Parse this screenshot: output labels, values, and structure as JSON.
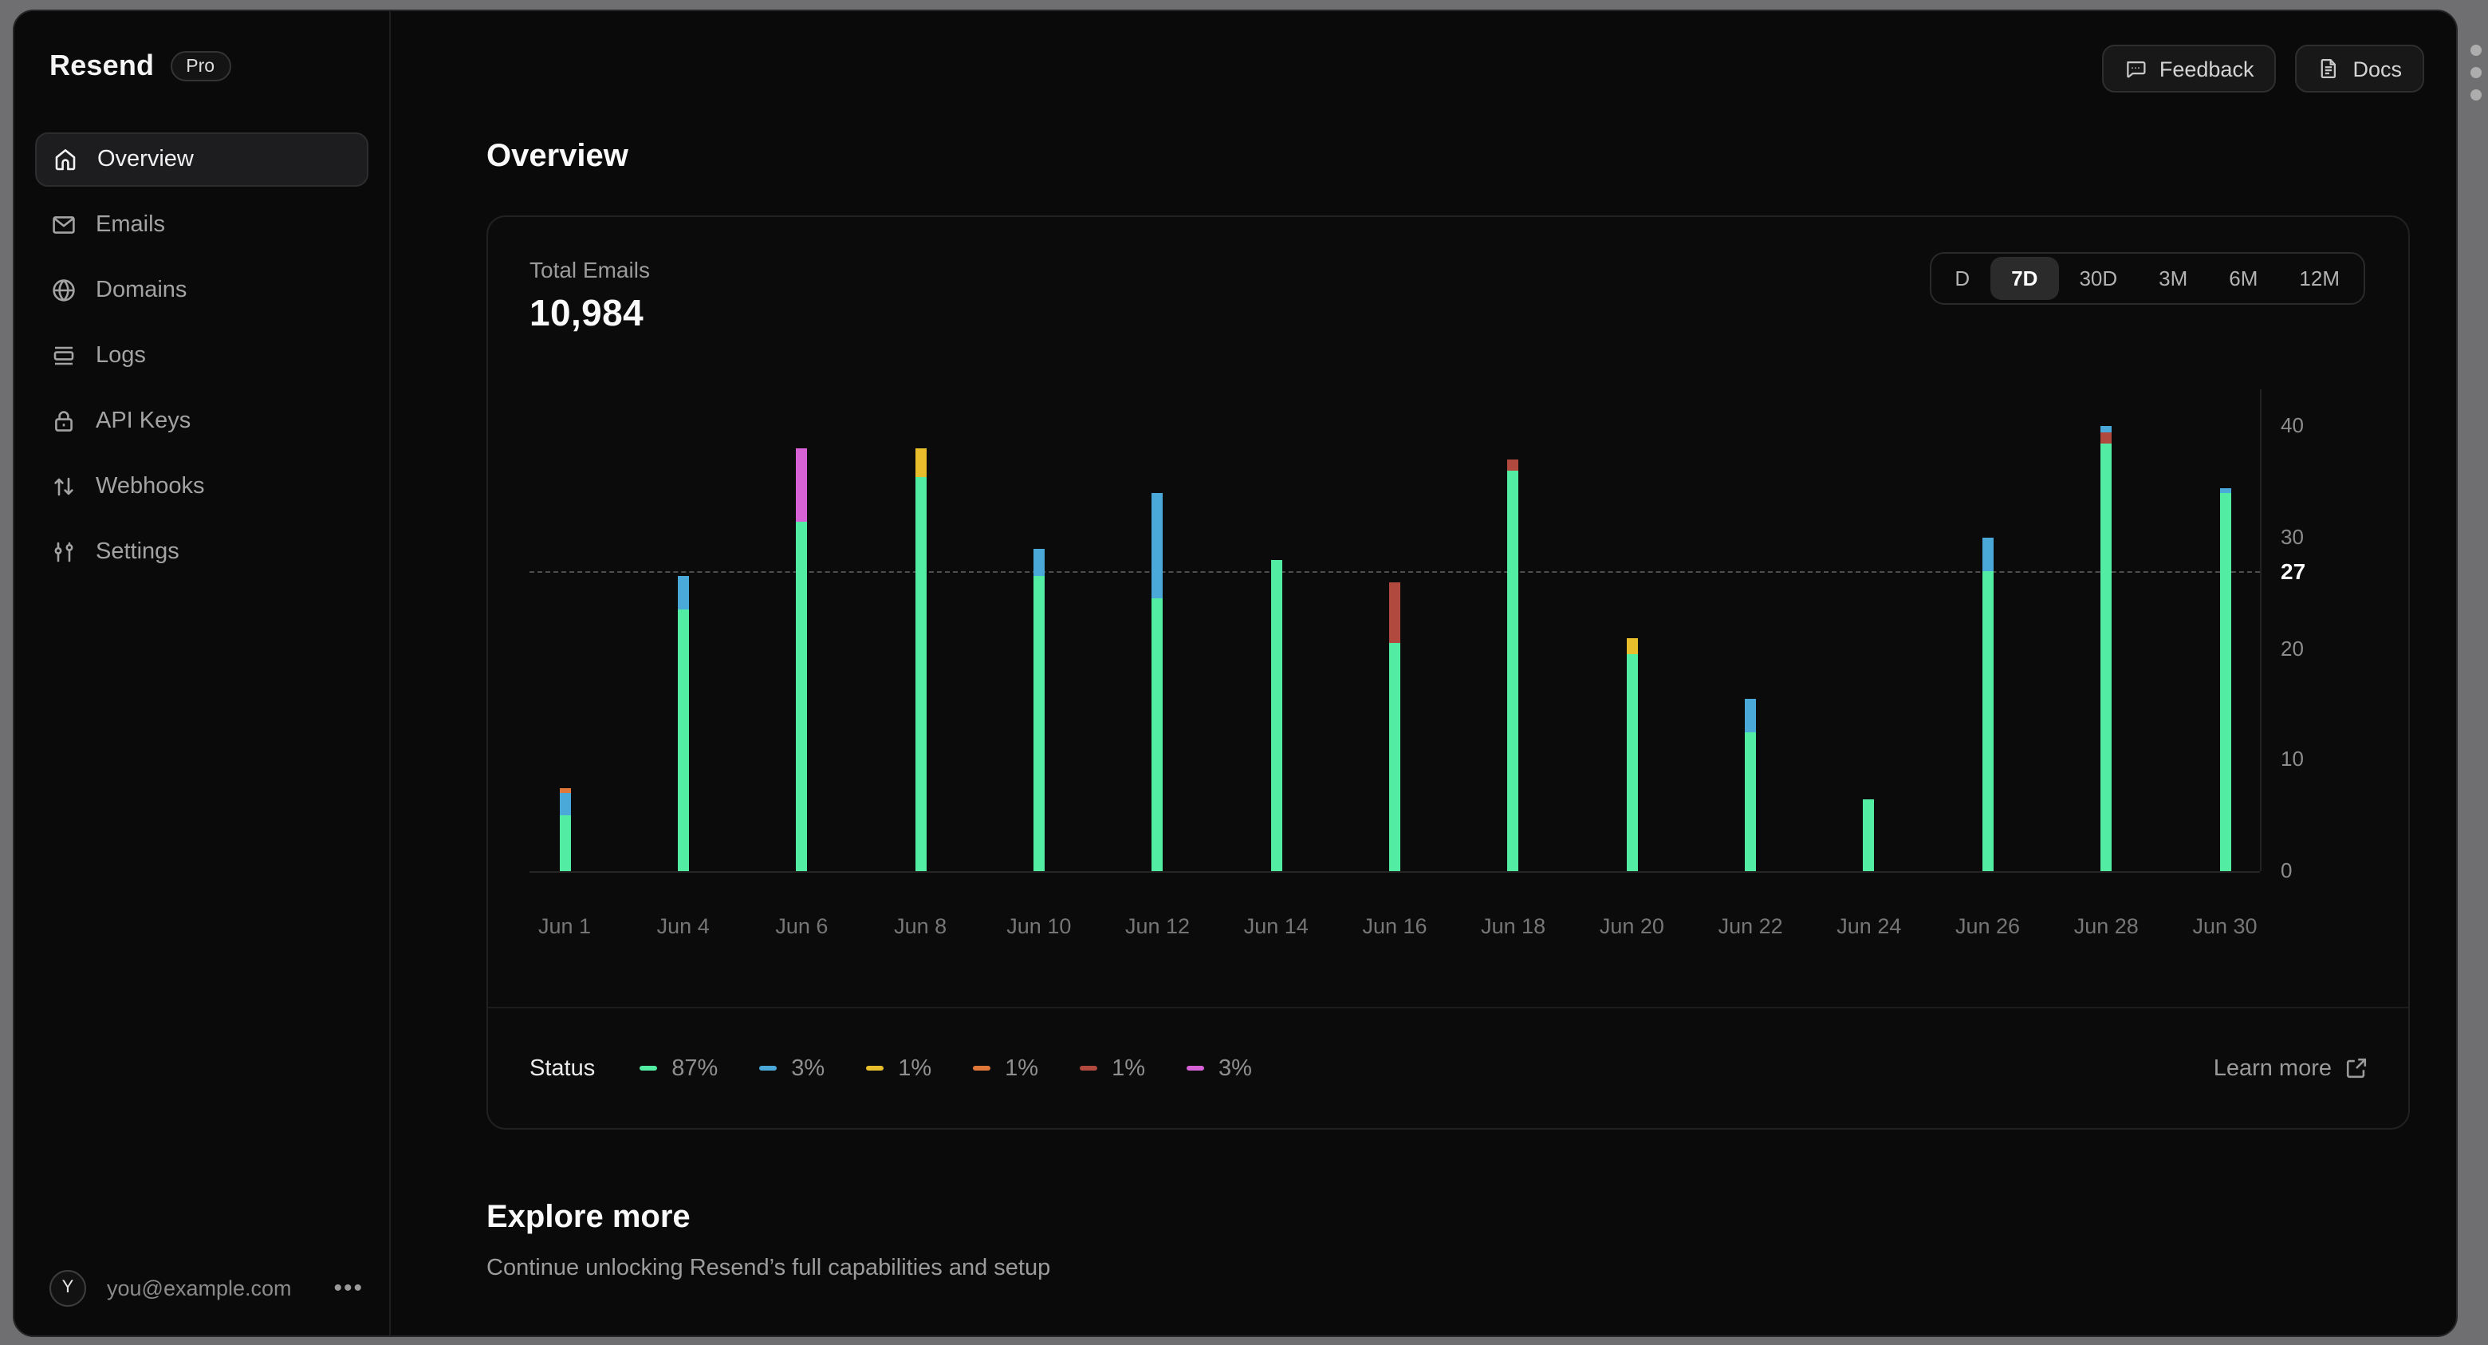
{
  "sidebar": {
    "brand": "Resend",
    "badge": "Pro",
    "items": [
      {
        "label": "Overview",
        "icon": "home-icon",
        "active": true
      },
      {
        "label": "Emails",
        "icon": "mail-icon",
        "active": false
      },
      {
        "label": "Domains",
        "icon": "globe-icon",
        "active": false
      },
      {
        "label": "Logs",
        "icon": "logs-icon",
        "active": false
      },
      {
        "label": "API Keys",
        "icon": "lock-icon",
        "active": false
      },
      {
        "label": "Webhooks",
        "icon": "arrows-up-down-icon",
        "active": false
      },
      {
        "label": "Settings",
        "icon": "sliders-icon",
        "active": false
      }
    ],
    "user": {
      "initial": "Y",
      "email": "you@example.com"
    }
  },
  "header": {
    "feedback_label": "Feedback",
    "docs_label": "Docs"
  },
  "main": {
    "title": "Overview"
  },
  "card": {
    "metric_label": "Total Emails",
    "metric_value": "10,984",
    "ranges": [
      "D",
      "7D",
      "30D",
      "3M",
      "6M",
      "12M"
    ],
    "active_range": "7D"
  },
  "chart_data": {
    "type": "bar",
    "stacked": true,
    "title": "Total Emails",
    "total_value": "10,984",
    "categories": [
      "Jun 1",
      "Jun 4",
      "Jun 6",
      "Jun 8",
      "Jun 10",
      "Jun 12",
      "Jun 14",
      "Jun 16",
      "Jun 18",
      "Jun 20",
      "Jun 22",
      "Jun 24",
      "Jun 26",
      "Jun 28",
      "Jun 30"
    ],
    "ylim": [
      0,
      42
    ],
    "yticks": [
      0,
      10,
      20,
      30,
      40
    ],
    "reference_line": 27,
    "grid": "off",
    "legend_position": "bottom",
    "colors": {
      "green": "#52EDA3",
      "blue": "#4AA9D9",
      "yellow": "#E8BE2C",
      "orange": "#E0783A",
      "red": "#B2493E",
      "magenta": "#D662D6"
    },
    "bars": [
      {
        "label": "Jun 1",
        "segments": [
          {
            "color": "green",
            "value": 5
          },
          {
            "color": "blue",
            "value": 2
          },
          {
            "color": "orange",
            "value": 0.5
          }
        ]
      },
      {
        "label": "Jun 4",
        "segments": [
          {
            "color": "green",
            "value": 23.5
          },
          {
            "color": "blue",
            "value": 3
          }
        ]
      },
      {
        "label": "Jun 6",
        "segments": [
          {
            "color": "green",
            "value": 31.5
          },
          {
            "color": "magenta",
            "value": 6.5
          }
        ]
      },
      {
        "label": "Jun 8",
        "segments": [
          {
            "color": "green",
            "value": 35.5
          },
          {
            "color": "yellow",
            "value": 2.5
          }
        ]
      },
      {
        "label": "Jun 10",
        "segments": [
          {
            "color": "green",
            "value": 26.5
          },
          {
            "color": "blue",
            "value": 2.5
          }
        ]
      },
      {
        "label": "Jun 12",
        "segments": [
          {
            "color": "green",
            "value": 24.5
          },
          {
            "color": "blue",
            "value": 9.5
          }
        ]
      },
      {
        "label": "Jun 14",
        "segments": [
          {
            "color": "green",
            "value": 28
          }
        ]
      },
      {
        "label": "Jun 16",
        "segments": [
          {
            "color": "green",
            "value": 20.5
          },
          {
            "color": "red",
            "value": 5.5
          }
        ]
      },
      {
        "label": "Jun 18",
        "segments": [
          {
            "color": "green",
            "value": 36
          },
          {
            "color": "red",
            "value": 1
          }
        ]
      },
      {
        "label": "Jun 20",
        "segments": [
          {
            "color": "green",
            "value": 19.5
          },
          {
            "color": "yellow",
            "value": 1.5
          }
        ]
      },
      {
        "label": "Jun 22",
        "segments": [
          {
            "color": "green",
            "value": 12.5
          },
          {
            "color": "blue",
            "value": 3
          }
        ]
      },
      {
        "label": "Jun 24",
        "segments": [
          {
            "color": "green",
            "value": 6.5
          }
        ]
      },
      {
        "label": "Jun 26",
        "segments": [
          {
            "color": "green",
            "value": 27
          },
          {
            "color": "blue",
            "value": 3
          }
        ]
      },
      {
        "label": "Jun 28",
        "segments": [
          {
            "color": "green",
            "value": 38.5
          },
          {
            "color": "red",
            "value": 1
          },
          {
            "color": "blue",
            "value": 0.5
          }
        ]
      },
      {
        "label": "Jun 30",
        "segments": [
          {
            "color": "green",
            "value": 34
          },
          {
            "color": "blue",
            "value": 0.5
          }
        ]
      }
    ]
  },
  "legend": {
    "title": "Status",
    "entries": [
      {
        "pct": "87%",
        "color": "green"
      },
      {
        "pct": "3%",
        "color": "blue"
      },
      {
        "pct": "1%",
        "color": "yellow"
      },
      {
        "pct": "1%",
        "color": "orange"
      },
      {
        "pct": "1%",
        "color": "red"
      },
      {
        "pct": "3%",
        "color": "magenta"
      }
    ],
    "learn_more_label": "Learn more"
  },
  "explore": {
    "title": "Explore more",
    "subtitle": "Continue unlocking Resend’s full capabilities and setup"
  }
}
